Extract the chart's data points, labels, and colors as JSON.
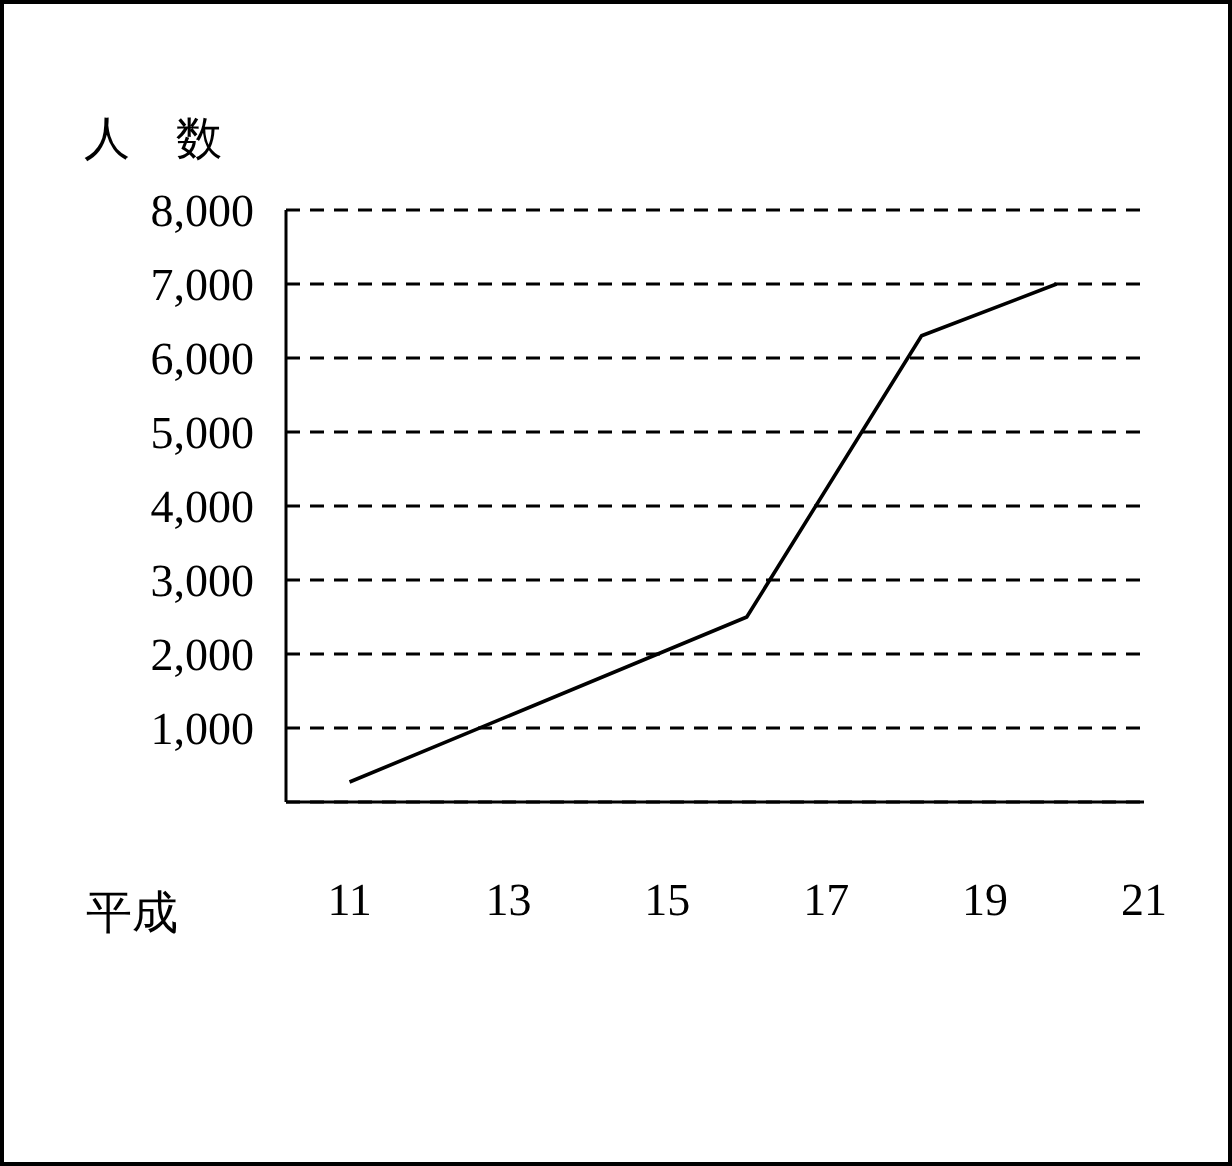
{
  "chart_data": {
    "type": "line",
    "ylabel": "人　数",
    "xlabel": "平成",
    "x": [
      11,
      16,
      18.2,
      19.9
    ],
    "series": [
      {
        "color": "#000000",
        "values": [
          270,
          2500,
          6300,
          7000
        ]
      }
    ],
    "xlim": [
      10.2,
      21
    ],
    "xticks": [
      11,
      13,
      15,
      17,
      19,
      21
    ],
    "ylim": [
      0,
      8000
    ],
    "yticks": [
      {
        "value": 1000,
        "label": "1,000"
      },
      {
        "value": 2000,
        "label": "2,000"
      },
      {
        "value": 3000,
        "label": "3,000"
      },
      {
        "value": 4000,
        "label": "4,000"
      },
      {
        "value": 5000,
        "label": "5,000"
      },
      {
        "value": 6000,
        "label": "6,000"
      },
      {
        "value": 7000,
        "label": "7,000"
      },
      {
        "value": 8000,
        "label": "8,000"
      }
    ],
    "grid": "y",
    "line_style": "solid",
    "marker": "none"
  }
}
